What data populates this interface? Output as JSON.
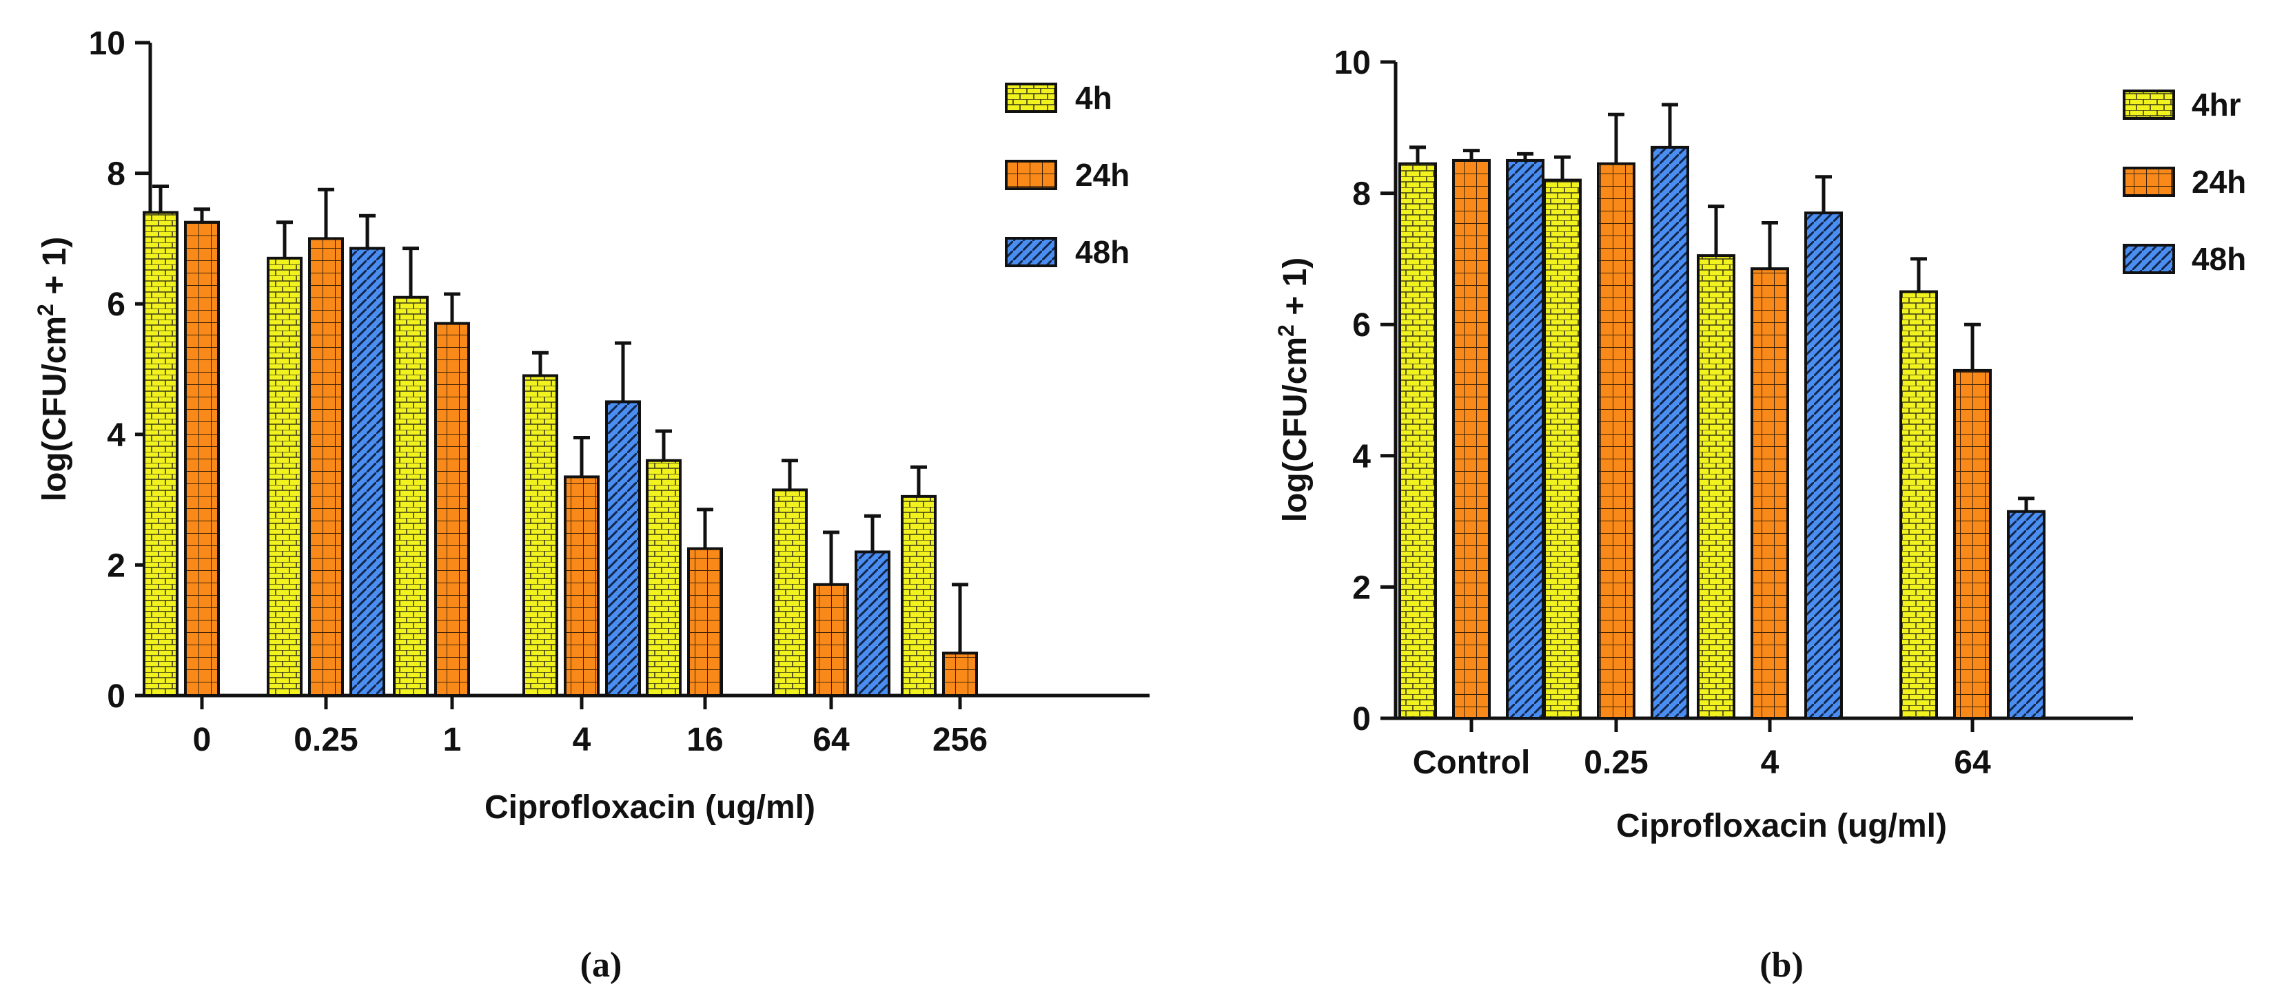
{
  "chart_data": [
    {
      "type": "bar",
      "panel_label": "(a)",
      "title": "",
      "xlabel": "Ciprofloxacin (ug/ml)",
      "ylabel_main": "log(CFU/cm",
      "ylabel_sup": "2",
      "ylabel_tail": " + 1)",
      "ylim": [
        0,
        10
      ],
      "yticks": [
        "0",
        "2",
        "4",
        "6",
        "8",
        "10"
      ],
      "categories": [
        "0",
        "0.25",
        "1",
        "4",
        "16",
        "64",
        "256"
      ],
      "legend_position": "top-right",
      "series": [
        {
          "name": "4h",
          "pattern": "brick",
          "color": "#f2f21e",
          "values": [
            7.4,
            6.7,
            6.1,
            4.9,
            3.6,
            3.15,
            3.05
          ],
          "errors": [
            0.4,
            0.55,
            0.75,
            0.35,
            0.45,
            0.45,
            0.45
          ]
        },
        {
          "name": "24h",
          "pattern": "grid",
          "color": "#f98a1a",
          "values": [
            7.25,
            7.0,
            5.7,
            3.35,
            2.25,
            1.7,
            0.65
          ],
          "errors": [
            0.2,
            0.75,
            0.45,
            0.6,
            0.6,
            0.8,
            1.05
          ]
        },
        {
          "name": "48h",
          "pattern": "diagonal",
          "color": "#4a8ef2",
          "values": [
            null,
            6.85,
            null,
            4.5,
            null,
            2.2,
            null
          ],
          "errors": [
            null,
            0.5,
            null,
            0.9,
            null,
            0.55,
            null
          ]
        }
      ]
    },
    {
      "type": "bar",
      "panel_label": "(b)",
      "title": "",
      "xlabel": "Ciprofloxacin (ug/ml)",
      "ylabel_main": "log(CFU/cm",
      "ylabel_sup": "2",
      "ylabel_tail": " + 1)",
      "ylim": [
        0,
        10
      ],
      "yticks": [
        "0",
        "2",
        "4",
        "6",
        "8",
        "10"
      ],
      "categories": [
        "Control",
        "0.25",
        "4",
        "64"
      ],
      "legend_position": "top-right",
      "series": [
        {
          "name": "4hr",
          "pattern": "brick",
          "color": "#f2f21e",
          "values": [
            8.45,
            8.2,
            7.05,
            6.5
          ],
          "errors": [
            0.25,
            0.35,
            0.75,
            0.5
          ]
        },
        {
          "name": "24h",
          "pattern": "grid",
          "color": "#f98a1a",
          "values": [
            8.5,
            8.45,
            6.85,
            5.3
          ],
          "errors": [
            0.15,
            0.75,
            0.7,
            0.7
          ]
        },
        {
          "name": "48h",
          "pattern": "diagonal",
          "color": "#4a8ef2",
          "values": [
            8.5,
            8.7,
            7.7,
            3.15
          ],
          "errors": [
            0.1,
            0.65,
            0.55,
            0.2
          ]
        }
      ]
    }
  ]
}
